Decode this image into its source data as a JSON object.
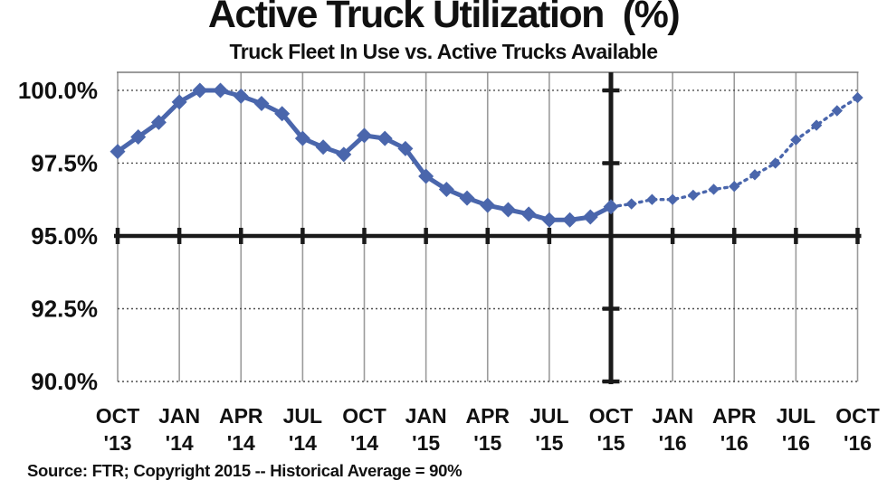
{
  "chart": {
    "title": "Active Truck Utilization  (%)",
    "subtitle": "Truck Fleet In Use vs. Active Trucks Available",
    "source_note": "Source: FTR; Copyright 2015 -- Historical Average = 90%"
  },
  "chart_data": {
    "type": "line",
    "title": "Active Truck Utilization (%)",
    "subtitle": "Truck Fleet In Use vs. Active Trucks Available",
    "source_note": "Source: FTR; Copyright 2015 -- Historical Average = 90%",
    "x": [
      "Oct '13",
      "Nov '13",
      "Dec '13",
      "Jan '14",
      "Feb '14",
      "Mar '14",
      "Apr '14",
      "May '14",
      "Jun '14",
      "Jul '14",
      "Aug '14",
      "Sep '14",
      "Oct '14",
      "Nov '14",
      "Dec '14",
      "Jan '15",
      "Feb '15",
      "Mar '15",
      "Apr '15",
      "May '15",
      "Jun '15",
      "Jul '15",
      "Aug '15",
      "Sep '15",
      "Oct '15",
      "Nov '15",
      "Dec '15",
      "Jan '16",
      "Feb '16",
      "Mar '16",
      "Apr '16",
      "May '16",
      "Jun '16",
      "Jul '16",
      "Aug '16",
      "Sep '16",
      "Oct '16"
    ],
    "values": [
      97.9,
      98.4,
      98.9,
      99.6,
      100.0,
      100.0,
      99.8,
      99.55,
      99.2,
      98.35,
      98.05,
      97.8,
      98.45,
      98.35,
      98.0,
      97.05,
      96.6,
      96.3,
      96.05,
      95.9,
      95.75,
      95.55,
      95.55,
      95.65,
      96.0,
      96.1,
      96.25,
      96.25,
      96.4,
      96.6,
      96.7,
      97.1,
      97.5,
      98.3,
      98.8,
      99.3,
      99.75
    ],
    "actual_count": 25,
    "forecast_style": "dotted line with smaller markers after Oct '15 vertical divider",
    "divider_x_label": "Oct '15",
    "x_tick_labels": [
      [
        "OCT",
        "'13"
      ],
      [
        "JAN",
        "'14"
      ],
      [
        "APR",
        "'14"
      ],
      [
        "JUL",
        "'14"
      ],
      [
        "OCT",
        "'14"
      ],
      [
        "JAN",
        "'15"
      ],
      [
        "APR",
        "'15"
      ],
      [
        "JUL",
        "'15"
      ],
      [
        "OCT",
        "'15"
      ],
      [
        "JAN",
        "'16"
      ],
      [
        "APR",
        "'16"
      ],
      [
        "JUL",
        "'16"
      ],
      [
        "OCT",
        "'16"
      ]
    ],
    "x_ticks_every_n_points": 3,
    "y_ticks": [
      {
        "label": "100.0%",
        "value": 100
      },
      {
        "label": "97.5%",
        "value": 97.5
      },
      {
        "label": "95.0%",
        "value": 95
      },
      {
        "label": "92.5%",
        "value": 92.5
      },
      {
        "label": "90.0%",
        "value": 90
      }
    ],
    "ylim": [
      90,
      100.62
    ],
    "axis_cross_value": 95,
    "grid": "vertical solid gray lines at each quarter; fine dotted horizontal lines at y ticks; bold black x-axis drawn at 95%; bold black vertical divider at Oct '15",
    "legend": "none",
    "colors": {
      "series": "#4a66ac",
      "axis": "#1a1a1a",
      "grid": "#9b9b9b",
      "dotted_grid": "#4d4d4d",
      "text": "#111111",
      "background": "#ffffff"
    }
  }
}
